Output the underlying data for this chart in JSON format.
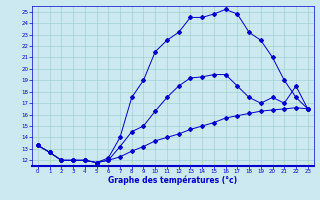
{
  "xlabel": "Graphe des températures (°c)",
  "background_color": "#cce8f0",
  "line_color": "#0000cc",
  "grid_color": "#99cccc",
  "xlim": [
    -0.5,
    23.5
  ],
  "ylim": [
    11.5,
    25.5
  ],
  "xticks": [
    0,
    1,
    2,
    3,
    4,
    5,
    6,
    7,
    8,
    9,
    10,
    11,
    12,
    13,
    14,
    15,
    16,
    17,
    18,
    19,
    20,
    21,
    22,
    23
  ],
  "yticks": [
    12,
    13,
    14,
    15,
    16,
    17,
    18,
    19,
    20,
    21,
    22,
    23,
    24,
    25
  ],
  "line1_x": [
    0,
    1,
    2,
    3,
    4,
    5,
    6,
    7,
    8,
    9,
    10,
    11,
    12,
    13,
    14,
    15,
    16,
    17,
    18,
    19,
    20,
    21,
    22,
    23
  ],
  "line1_y": [
    13.3,
    12.7,
    12.0,
    12.0,
    12.0,
    11.8,
    12.0,
    13.2,
    14.5,
    15.0,
    16.3,
    17.5,
    18.5,
    19.2,
    19.3,
    19.5,
    19.5,
    18.5,
    17.5,
    17.0,
    17.5,
    17.0,
    18.5,
    16.5
  ],
  "line2_x": [
    0,
    1,
    2,
    3,
    4,
    5,
    6,
    7,
    8,
    9,
    10,
    11,
    12,
    13,
    14,
    15,
    16,
    17,
    18,
    19,
    20,
    21,
    22,
    23
  ],
  "line2_y": [
    13.3,
    12.7,
    12.0,
    12.0,
    12.0,
    11.8,
    12.2,
    14.0,
    17.5,
    19.0,
    21.5,
    22.5,
    23.2,
    24.5,
    24.5,
    24.8,
    25.2,
    24.8,
    23.2,
    22.5,
    21.0,
    19.0,
    17.5,
    16.5
  ],
  "line3_x": [
    0,
    1,
    2,
    3,
    4,
    5,
    6,
    7,
    8,
    9,
    10,
    11,
    12,
    13,
    14,
    15,
    16,
    17,
    18,
    19,
    20,
    21,
    22,
    23
  ],
  "line3_y": [
    13.3,
    12.7,
    12.0,
    12.0,
    12.0,
    11.8,
    12.0,
    12.3,
    12.8,
    13.2,
    13.7,
    14.0,
    14.3,
    14.7,
    15.0,
    15.3,
    15.7,
    15.9,
    16.1,
    16.3,
    16.4,
    16.5,
    16.6,
    16.5
  ]
}
